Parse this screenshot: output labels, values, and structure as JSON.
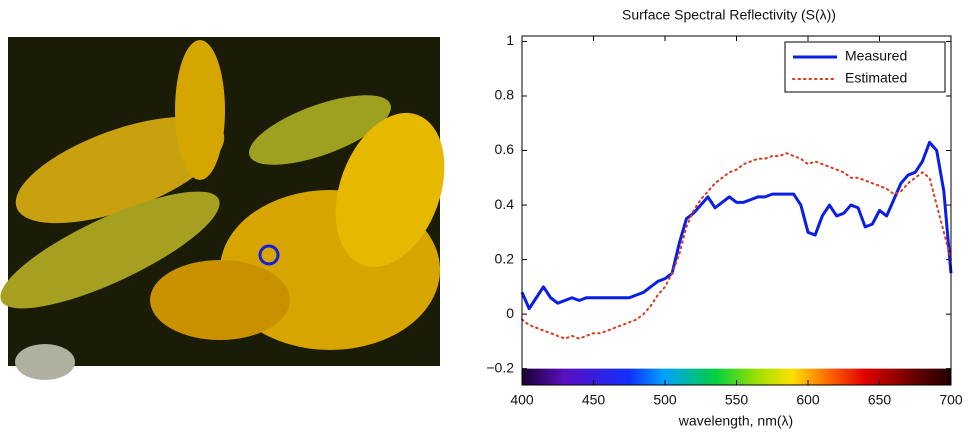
{
  "chart_data": {
    "type": "line",
    "title": "Surface Spectral Reflectivity (S(λ))",
    "x_label": "wavelength, nm(λ)",
    "x": [
      400,
      405,
      410,
      415,
      420,
      425,
      430,
      435,
      440,
      445,
      450,
      455,
      460,
      465,
      470,
      475,
      480,
      485,
      490,
      495,
      500,
      505,
      510,
      515,
      520,
      525,
      530,
      535,
      540,
      545,
      550,
      555,
      560,
      565,
      570,
      575,
      580,
      585,
      590,
      595,
      600,
      605,
      610,
      615,
      620,
      625,
      630,
      635,
      640,
      645,
      650,
      655,
      660,
      665,
      670,
      675,
      680,
      685,
      690,
      695,
      700
    ],
    "series": [
      {
        "name": "Measured",
        "color": "#0a1ee6",
        "linestyle": "solid",
        "values": [
          0.08,
          0.02,
          0.06,
          0.1,
          0.06,
          0.04,
          0.05,
          0.06,
          0.05,
          0.06,
          0.06,
          0.06,
          0.06,
          0.06,
          0.06,
          0.06,
          0.07,
          0.08,
          0.1,
          0.12,
          0.13,
          0.15,
          0.26,
          0.35,
          0.37,
          0.4,
          0.43,
          0.39,
          0.41,
          0.43,
          0.41,
          0.41,
          0.42,
          0.43,
          0.43,
          0.44,
          0.44,
          0.44,
          0.44,
          0.4,
          0.3,
          0.29,
          0.36,
          0.4,
          0.36,
          0.37,
          0.4,
          0.39,
          0.32,
          0.33,
          0.38,
          0.36,
          0.42,
          0.48,
          0.51,
          0.52,
          0.56,
          0.63,
          0.6,
          0.45,
          0.15
        ]
      },
      {
        "name": "Estimated",
        "color": "#d83a1e",
        "linestyle": "dotted",
        "values": [
          -0.02,
          -0.04,
          -0.05,
          -0.06,
          -0.07,
          -0.08,
          -0.09,
          -0.08,
          -0.09,
          -0.08,
          -0.07,
          -0.07,
          -0.06,
          -0.05,
          -0.04,
          -0.03,
          -0.02,
          0.0,
          0.03,
          0.07,
          0.1,
          0.15,
          0.22,
          0.32,
          0.38,
          0.42,
          0.45,
          0.48,
          0.5,
          0.52,
          0.53,
          0.55,
          0.56,
          0.57,
          0.57,
          0.58,
          0.58,
          0.59,
          0.58,
          0.57,
          0.55,
          0.56,
          0.55,
          0.54,
          0.53,
          0.52,
          0.5,
          0.5,
          0.49,
          0.48,
          0.47,
          0.46,
          0.44,
          0.45,
          0.48,
          0.5,
          0.52,
          0.5,
          0.4,
          0.3,
          0.2
        ]
      }
    ],
    "xlim": [
      400,
      700
    ],
    "ylim": [
      -0.26,
      1.02
    ],
    "xticks": [
      400,
      450,
      500,
      550,
      600,
      650,
      700
    ],
    "yticks": [
      {
        "value": -0.2,
        "label": "−0.2"
      },
      0,
      0.2,
      0.4,
      0.6,
      0.8,
      1
    ],
    "legend": "upper right"
  }
}
